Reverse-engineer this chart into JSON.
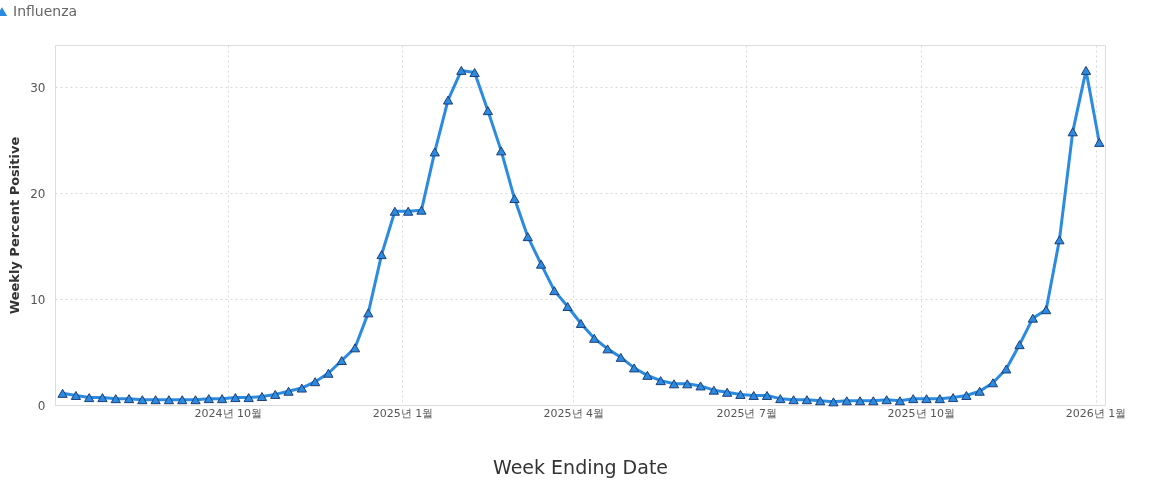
{
  "chart_data": {
    "type": "line",
    "xlabel": "Week Ending Date",
    "ylabel": "Weekly Percent Positive",
    "x": [
      "2024-07-06",
      "2024-07-13",
      "2024-07-20",
      "2024-07-27",
      "2024-08-03",
      "2024-08-10",
      "2024-08-17",
      "2024-08-24",
      "2024-08-31",
      "2024-09-07",
      "2024-09-14",
      "2024-09-21",
      "2024-09-28",
      "2024-10-05",
      "2024-10-12",
      "2024-10-19",
      "2024-10-26",
      "2024-11-02",
      "2024-11-09",
      "2024-11-16",
      "2024-11-23",
      "2024-11-30",
      "2024-12-07",
      "2024-12-14",
      "2024-12-21",
      "2024-12-28",
      "2025-01-04",
      "2025-01-11",
      "2025-01-18",
      "2025-01-25",
      "2025-02-01",
      "2025-02-08",
      "2025-02-15",
      "2025-02-22",
      "2025-03-01",
      "2025-03-08",
      "2025-03-15",
      "2025-03-22",
      "2025-03-29",
      "2025-04-05",
      "2025-04-12",
      "2025-04-19",
      "2025-04-26",
      "2025-05-03",
      "2025-05-10",
      "2025-05-17",
      "2025-05-24",
      "2025-05-31",
      "2025-06-07",
      "2025-06-14",
      "2025-06-21",
      "2025-06-28",
      "2025-07-05",
      "2025-07-12",
      "2025-07-19",
      "2025-07-26",
      "2025-08-02",
      "2025-08-09",
      "2025-08-16",
      "2025-08-23",
      "2025-08-30",
      "2025-09-06",
      "2025-09-13",
      "2025-09-20",
      "2025-09-27",
      "2025-10-04",
      "2025-10-11",
      "2025-10-18",
      "2025-10-25",
      "2025-11-01",
      "2025-11-08",
      "2025-11-15",
      "2025-11-22",
      "2025-11-29",
      "2025-12-06",
      "2025-12-13",
      "2025-12-20",
      "2025-12-27",
      "2026-01-03"
    ],
    "series": [
      {
        "name": "Influenza",
        "color": "#2b8be0",
        "values": [
          1.1,
          0.9,
          0.7,
          0.7,
          0.6,
          0.6,
          0.5,
          0.5,
          0.5,
          0.5,
          0.5,
          0.6,
          0.6,
          0.7,
          0.7,
          0.8,
          1.0,
          1.3,
          1.6,
          2.2,
          3.0,
          4.2,
          5.4,
          8.7,
          14.2,
          18.3,
          18.3,
          18.4,
          23.9,
          28.8,
          31.6,
          31.4,
          27.8,
          24.0,
          19.5,
          15.9,
          13.3,
          10.8,
          9.3,
          7.7,
          6.3,
          5.3,
          4.5,
          3.5,
          2.8,
          2.3,
          2.0,
          2.0,
          1.8,
          1.4,
          1.2,
          1.0,
          0.9,
          0.9,
          0.6,
          0.5,
          0.5,
          0.4,
          0.3,
          0.4,
          0.4,
          0.4,
          0.5,
          0.4,
          0.6,
          0.6,
          0.6,
          0.7,
          0.9,
          1.3,
          2.1,
          3.4,
          5.7,
          8.2,
          9.0,
          15.6,
          25.8,
          31.6,
          24.8
        ]
      }
    ],
    "xlim": [
      "2024-07-02",
      "2026-01-06"
    ],
    "xticks": [
      {
        "value": "2024-10-01",
        "label": "2024년 10월"
      },
      {
        "value": "2025-01-01",
        "label": "2025년 1월"
      },
      {
        "value": "2025-04-01",
        "label": "2025년 4월"
      },
      {
        "value": "2025-07-01",
        "label": "2025년 7월"
      },
      {
        "value": "2025-10-01",
        "label": "2025년 10월"
      },
      {
        "value": "2026-01-01",
        "label": "2026년 1월"
      }
    ],
    "ylim": [
      0,
      34
    ],
    "yticks": [
      0,
      10,
      20,
      30
    ],
    "grid": true,
    "legend": "top left",
    "marker": "triangle",
    "line_style": "solid"
  }
}
